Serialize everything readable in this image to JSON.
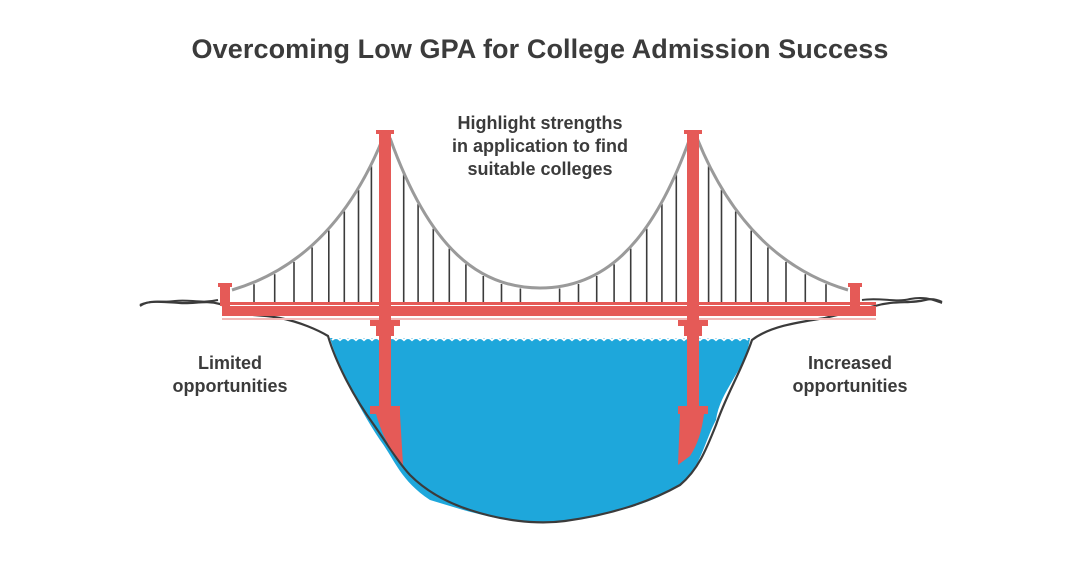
{
  "title": "Overcoming Low GPA for College Admission Success",
  "labels": {
    "center": [
      "Highlight strengths",
      "in application to find",
      "suitable colleges"
    ],
    "left": [
      "Limited",
      "opportunities"
    ],
    "right": [
      "Increased",
      "opportunities"
    ]
  },
  "colors": {
    "tower": "#e55a57",
    "cable": "#9a9a9a",
    "suspender": "#3b3b3b",
    "water": "#1ea7db",
    "ground_outline": "#3b3b3b",
    "text": "#3b3b3b"
  }
}
